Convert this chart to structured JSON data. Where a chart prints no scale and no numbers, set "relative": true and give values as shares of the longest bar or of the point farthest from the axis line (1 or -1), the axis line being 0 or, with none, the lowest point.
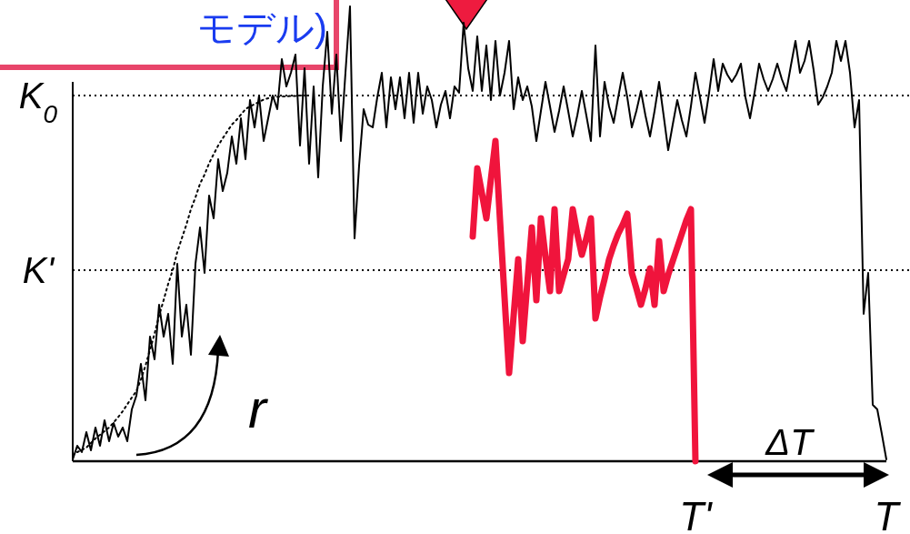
{
  "chart_data": {
    "type": "line",
    "title": "モデル)",
    "relative": true,
    "categories": [
      null,
      null,
      null,
      null,
      null,
      null,
      null,
      null,
      null,
      null,
      null,
      null,
      null,
      null,
      null,
      null,
      null,
      null,
      null,
      null,
      null,
      null,
      null,
      null,
      null,
      null,
      null,
      null,
      null,
      null,
      null,
      null,
      null,
      null,
      null,
      null,
      null,
      null,
      null,
      null,
      null,
      null,
      null,
      null,
      null,
      null,
      null,
      null,
      null,
      null,
      null,
      null,
      null,
      null,
      null,
      null,
      null,
      null,
      null,
      null,
      null,
      null,
      null,
      null,
      null,
      null,
      null,
      null,
      null,
      null,
      null,
      null,
      null,
      null,
      null,
      null,
      null,
      null,
      null,
      null,
      null,
      null,
      null,
      null,
      null,
      null,
      null,
      null,
      null,
      null,
      null,
      null,
      null,
      null,
      null,
      null,
      null,
      null,
      null,
      null,
      null,
      null,
      null,
      null,
      null,
      null,
      null,
      null,
      null,
      null,
      null,
      null,
      null,
      null,
      null,
      null,
      null,
      null,
      null,
      null,
      null,
      null,
      null,
      null,
      null,
      null,
      null,
      null,
      null,
      null,
      null,
      null,
      null,
      null,
      null,
      null,
      null,
      "T'",
      null,
      null,
      null,
      null,
      null,
      null,
      null,
      null,
      null,
      null,
      null,
      null,
      null,
      null,
      null,
      null,
      null,
      null,
      null,
      null,
      null,
      null,
      null,
      null,
      null,
      null,
      null,
      null,
      null,
      null,
      null,
      null,
      null,
      null,
      null,
      null,
      null,
      null,
      null,
      null,
      null,
      "T"
    ],
    "series": [
      {
        "color": "#000000",
        "values": [
          0.004,
          0.034,
          0.02,
          0.064,
          0.024,
          0.074,
          0.034,
          0.09,
          0.044,
          0.084,
          0.054,
          0.074,
          0.044,
          0.114,
          0.144,
          0.214,
          0.134,
          0.274,
          0.224,
          0.344,
          0.274,
          0.324,
          0.214,
          0.434,
          0.274,
          0.344,
          0.234,
          0.434,
          0.514,
          0.414,
          0.584,
          0.534,
          0.664,
          0.594,
          0.634,
          0.714,
          0.654,
          0.754,
          0.664,
          0.794,
          0.734,
          0.804,
          0.704,
          0.754,
          0.804,
          0.774,
          0.884,
          0.824,
          0.854,
          0.894,
          0.694,
          0.864,
          0.654,
          0.824,
          0.624,
          0.824,
          0.944,
          0.764,
          0.894,
          0.704,
          0.854,
          1,
          0.49,
          0.65,
          0.774,
          0.74,
          0.734,
          0.8,
          0.854,
          0.734,
          0.844,
          0.774,
          0.844,
          0.754,
          0.854,
          0.744,
          0.854,
          0.764,
          0.824,
          0.794,
          0.734,
          0.784,
          0.814,
          0.754,
          0.824,
          0.81,
          0.964,
          0.864,
          0.814,
          0.934,
          0.814,
          0.914,
          0.794,
          0.924,
          0.804,
          0.854,
          0.924,
          0.774,
          0.844,
          0.794,
          0.824,
          0.78,
          0.704,
          0.77,
          0.834,
          0.78,
          0.724,
          0.77,
          0.824,
          0.77,
          0.714,
          0.76,
          0.814,
          0.76,
          0.704,
          0.914,
          0.714,
          0.834,
          0.78,
          0.744,
          0.8,
          0.854,
          0.8,
          0.734,
          0.77,
          0.814,
          0.76,
          0.714,
          0.77,
          0.834,
          0.76,
          0.684,
          0.74,
          0.794,
          0.75,
          0.714,
          0.78,
          0.854,
          0.8,
          0.744,
          0.81,
          0.884,
          0.814,
          0.874,
          0.85,
          0.834,
          0.85,
          0.874,
          0.8,
          0.754,
          0.81,
          0.874,
          0.84,
          0.814,
          0.84,
          0.874,
          0.84,
          0.814,
          0.87,
          0.924,
          0.854,
          0.88,
          0.924,
          0.86,
          0.784,
          0.8,
          0.824,
          0.854,
          0.924,
          0.88,
          0.924,
          0.854,
          0.734,
          0.794,
          0.324,
          0.414,
          0.124,
          0.114,
          0.06,
          0.004
        ]
      },
      {
        "color": "#000000",
        "line_style": "dotted",
        "values": [
          null,
          0.02,
          0.025,
          0.03,
          0.04,
          0.05,
          0.058,
          0.066,
          0.074,
          0.085,
          0.097,
          0.11,
          0.125,
          0.14,
          0.154,
          0.18,
          0.21,
          0.245,
          0.28,
          0.32,
          0.354,
          0.39,
          0.42,
          0.46,
          0.49,
          0.52,
          0.554,
          0.58,
          0.61,
          0.63,
          0.655,
          0.675,
          0.694,
          0.71,
          0.725,
          0.74,
          0.75,
          0.762,
          0.774,
          0.78,
          0.785,
          0.79,
          0.795,
          0.798,
          0.8,
          0.801,
          0.802,
          0.802,
          0.803,
          0.803,
          0.804,
          0.804,
          0.804,
          null,
          null,
          null,
          null,
          null,
          null,
          null,
          null,
          null,
          null,
          null,
          null,
          null,
          null,
          null,
          null,
          null,
          null,
          null,
          null,
          null,
          null,
          null,
          null,
          null,
          null,
          null,
          null,
          null,
          null,
          null,
          null,
          null,
          null,
          null,
          null,
          null,
          null,
          null,
          null,
          null,
          null,
          null,
          null,
          null,
          null,
          null,
          null,
          null,
          null,
          null,
          null,
          null,
          null,
          null,
          null,
          null,
          null,
          null,
          null,
          null,
          null,
          null,
          null,
          null,
          null,
          null,
          null,
          null,
          null,
          null,
          null,
          null,
          null,
          null,
          null,
          null,
          null,
          null,
          null,
          null,
          null,
          null,
          null,
          null,
          null,
          null,
          null,
          null,
          null,
          null,
          null,
          null,
          null,
          null,
          null,
          null,
          null,
          null,
          null,
          null,
          null,
          null,
          null,
          null,
          null,
          null,
          null,
          null,
          null,
          null,
          null,
          null,
          null,
          null,
          null,
          null,
          null,
          null,
          null,
          null,
          null,
          null,
          null,
          null,
          null,
          null
        ]
      },
      {
        "color": "#f0143c",
        "values": [
          null,
          null,
          null,
          null,
          null,
          null,
          null,
          null,
          null,
          null,
          null,
          null,
          null,
          null,
          null,
          null,
          null,
          null,
          null,
          null,
          null,
          null,
          null,
          null,
          null,
          null,
          null,
          null,
          null,
          null,
          null,
          null,
          null,
          null,
          null,
          null,
          null,
          null,
          null,
          null,
          null,
          null,
          null,
          null,
          null,
          null,
          null,
          null,
          null,
          null,
          null,
          null,
          null,
          null,
          null,
          null,
          null,
          null,
          null,
          null,
          null,
          null,
          null,
          null,
          null,
          null,
          null,
          null,
          null,
          null,
          null,
          null,
          null,
          null,
          null,
          null,
          null,
          null,
          null,
          null,
          null,
          null,
          null,
          null,
          null,
          null,
          null,
          null,
          0.494,
          0.644,
          0.59,
          0.534,
          0.62,
          0.704,
          0.53,
          0.36,
          0.194,
          0.32,
          0.444,
          0.264,
          0.39,
          0.514,
          0.354,
          0.534,
          0.45,
          0.374,
          0.554,
          0.374,
          0.41,
          0.444,
          0.554,
          0.5,
          0.454,
          0.49,
          0.534,
          0.314,
          0.36,
          0.4,
          0.444,
          0.474,
          0.5,
          0.52,
          0.544,
          0.414,
          0.38,
          0.344,
          0.38,
          0.424,
          0.344,
          0.484,
          0.374,
          0.41,
          0.44,
          0.47,
          0.5,
          0.53,
          0.554,
          0,
          null,
          null,
          null,
          null,
          null,
          null,
          null,
          null,
          null,
          null,
          null,
          null,
          null,
          null,
          null,
          null,
          null,
          null,
          null,
          null,
          null,
          null,
          null,
          null,
          null,
          null,
          null,
          null,
          null,
          null,
          null,
          null,
          null,
          null,
          null,
          null,
          null,
          null,
          null,
          null,
          null,
          null
        ]
      }
    ],
    "ref_lines": [
      {
        "axis": "y",
        "value": 0.804,
        "label": "K$_{0}$",
        "line_style": "dotted"
      },
      {
        "axis": "y",
        "value": 0.42,
        "label": "K'",
        "line_style": "dotted"
      }
    ],
    "annotations": [
      "r",
      "ΔT"
    ]
  }
}
